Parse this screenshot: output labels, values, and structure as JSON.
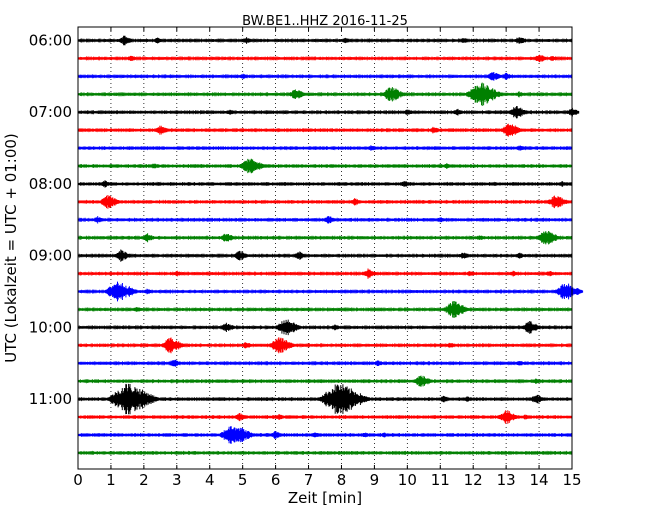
{
  "chart_data": {
    "type": "line",
    "title": "BW.BE1..HHZ 2016-11-25",
    "xlabel": "Zeit  [min]",
    "ylabel": "UTC (Lokalzeit = UTC + 01:00)",
    "xlim": [
      0,
      15
    ],
    "x_ticks": [
      "0",
      "1",
      "2",
      "3",
      "4",
      "5",
      "6",
      "7",
      "8",
      "9",
      "10",
      "11",
      "12",
      "13",
      "14",
      "15"
    ],
    "y_ticks": [
      {
        "row": 0,
        "label": "06:00"
      },
      {
        "row": 4,
        "label": "07:00"
      },
      {
        "row": 8,
        "label": "08:00"
      },
      {
        "row": 12,
        "label": "09:00"
      },
      {
        "row": 16,
        "label": "10:00"
      },
      {
        "row": 20,
        "label": "11:00"
      }
    ],
    "grid": "vertical dotted lines at each minute",
    "row_colors": [
      "#000000",
      "#ff0000",
      "#0000ff",
      "#008000"
    ],
    "traces": [
      {
        "start": "06:00",
        "events": [
          [
            1.4,
            0.6
          ],
          [
            2.4,
            0.3
          ],
          [
            5.1,
            0.4
          ],
          [
            8.1,
            0.3
          ],
          [
            11.7,
            0.3
          ],
          [
            13.4,
            0.5
          ]
        ]
      },
      {
        "start": "06:15",
        "events": [
          [
            1.6,
            0.3
          ],
          [
            14.0,
            0.5
          ],
          [
            14.4,
            0.3
          ]
        ]
      },
      {
        "start": "06:30",
        "events": [
          [
            5.0,
            0.3
          ],
          [
            12.6,
            0.6
          ],
          [
            13.0,
            0.4
          ]
        ]
      },
      {
        "start": "06:45",
        "events": [
          [
            6.6,
            0.7
          ],
          [
            9.5,
            1.0
          ],
          [
            12.2,
            1.6
          ],
          [
            13.4,
            0.3
          ]
        ]
      },
      {
        "start": "07:00",
        "events": [
          [
            4.6,
            0.3
          ],
          [
            10.0,
            0.3
          ],
          [
            11.5,
            0.4
          ],
          [
            13.3,
            0.8
          ],
          [
            15.0,
            0.5
          ]
        ]
      },
      {
        "start": "07:15",
        "events": [
          [
            2.5,
            0.6
          ],
          [
            10.8,
            0.4
          ],
          [
            13.1,
            0.9
          ]
        ]
      },
      {
        "start": "07:30",
        "events": [
          [
            8.9,
            0.3
          ],
          [
            13.4,
            0.3
          ]
        ]
      },
      {
        "start": "07:45",
        "events": [
          [
            2.3,
            0.3
          ],
          [
            5.2,
            1.1
          ],
          [
            11.2,
            0.3
          ]
        ]
      },
      {
        "start": "08:00",
        "events": [
          [
            0.8,
            0.4
          ],
          [
            9.9,
            0.4
          ],
          [
            14.7,
            0.3
          ]
        ]
      },
      {
        "start": "08:15",
        "events": [
          [
            0.9,
            0.9
          ],
          [
            8.4,
            0.4
          ],
          [
            14.5,
            0.9
          ]
        ]
      },
      {
        "start": "08:30",
        "events": [
          [
            0.6,
            0.4
          ],
          [
            7.6,
            0.5
          ],
          [
            11.0,
            0.3
          ]
        ]
      },
      {
        "start": "08:45",
        "events": [
          [
            2.1,
            0.5
          ],
          [
            4.5,
            0.6
          ],
          [
            12.2,
            0.3
          ],
          [
            14.2,
            1.0
          ]
        ]
      },
      {
        "start": "09:00",
        "events": [
          [
            1.3,
            0.7
          ],
          [
            4.9,
            0.6
          ],
          [
            6.7,
            0.5
          ],
          [
            11.7,
            0.4
          ],
          [
            13.4,
            0.3
          ]
        ]
      },
      {
        "start": "09:15",
        "events": [
          [
            3.0,
            0.3
          ],
          [
            8.8,
            0.6
          ],
          [
            11.9,
            0.3
          ],
          [
            13.2,
            0.3
          ],
          [
            14.3,
            0.3
          ]
        ]
      },
      {
        "start": "09:30",
        "events": [
          [
            1.2,
            1.4
          ],
          [
            2.1,
            0.3
          ],
          [
            14.8,
            1.2
          ]
        ]
      },
      {
        "start": "09:45",
        "events": [
          [
            1.8,
            0.3
          ],
          [
            11.4,
            1.1
          ]
        ]
      },
      {
        "start": "10:00",
        "events": [
          [
            4.5,
            0.6
          ],
          [
            6.3,
            1.1
          ],
          [
            7.8,
            0.3
          ],
          [
            13.7,
            0.8
          ]
        ]
      },
      {
        "start": "10:15",
        "events": [
          [
            2.8,
            1.0
          ],
          [
            5.1,
            0.4
          ],
          [
            6.1,
            1.1
          ],
          [
            11.3,
            0.3
          ]
        ]
      },
      {
        "start": "10:30",
        "events": [
          [
            2.9,
            0.5
          ],
          [
            9.1,
            0.3
          ],
          [
            13.4,
            0.3
          ]
        ]
      },
      {
        "start": "10:45",
        "events": [
          [
            10.4,
            0.8
          ],
          [
            13.9,
            0.3
          ]
        ]
      },
      {
        "start": "11:00",
        "events": [
          [
            1.5,
            2.2
          ],
          [
            7.9,
            2.2
          ],
          [
            11.1,
            0.4
          ],
          [
            11.8,
            0.3
          ],
          [
            13.9,
            0.6
          ]
        ]
      },
      {
        "start": "11:15",
        "events": [
          [
            4.9,
            0.5
          ],
          [
            6.1,
            0.3
          ],
          [
            13.0,
            0.9
          ],
          [
            13.6,
            0.3
          ]
        ]
      },
      {
        "start": "11:30",
        "events": [
          [
            4.7,
            1.5
          ],
          [
            6.0,
            0.5
          ],
          [
            7.2,
            0.3
          ],
          [
            8.7,
            0.3
          ],
          [
            9.3,
            0.3
          ]
        ]
      },
      {
        "start": "11:45",
        "events": []
      }
    ]
  }
}
